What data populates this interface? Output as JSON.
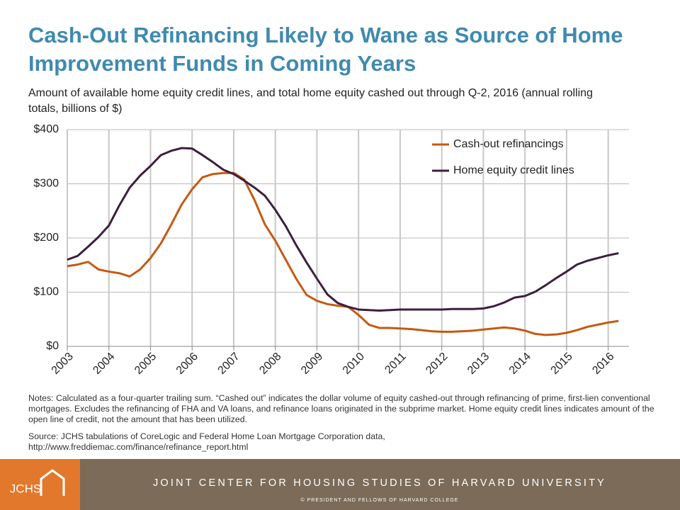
{
  "chart_data": {
    "type": "line",
    "title": "Cash-Out Refinancing Likely to Wane as Source of Home Improvement Funds in Coming Years",
    "subtitle": "Amount of available home equity credit lines, and total home equity cashed out through Q-2, 2016 (annual rolling totals, billions of $)",
    "notes": "Notes: Calculated as a four-quarter trailing sum. “Cashed out” indicates the dollar volume of equity cashed-out through refinancing of prime, first-lien conventional mortgages. Excludes the refinancing of FHA and VA loans, and refinance loans originated in the subprime market. Home equity credit lines indicates amount of the open line of credit, not the amount that has been utilized.",
    "source": "Source: JCHS tabulations of CoreLogic and Federal Home Loan Mortgage Corporation data, http://www.freddiemac.com/finance/refinance_report.html",
    "x": [
      2003,
      2003.25,
      2003.5,
      2003.75,
      2004,
      2004.25,
      2004.5,
      2004.75,
      2005,
      2005.25,
      2005.5,
      2005.75,
      2006,
      2006.25,
      2006.5,
      2006.75,
      2007,
      2007.25,
      2007.5,
      2007.75,
      2008,
      2008.25,
      2008.5,
      2008.75,
      2009,
      2009.25,
      2009.5,
      2009.75,
      2010,
      2010.25,
      2010.5,
      2010.75,
      2011,
      2011.25,
      2011.5,
      2011.75,
      2012,
      2012.25,
      2012.5,
      2012.75,
      2013,
      2013.25,
      2013.5,
      2013.75,
      2014,
      2014.25,
      2014.5,
      2014.75,
      2015,
      2015.25,
      2015.5,
      2015.75,
      2016,
      2016.25
    ],
    "series": [
      {
        "name": "Cash-out refinancings",
        "color": "#c55a11",
        "values": [
          148,
          151,
          156,
          142,
          138,
          135,
          129,
          142,
          163,
          190,
          225,
          262,
          290,
          312,
          318,
          320,
          320,
          308,
          270,
          225,
          195,
          160,
          125,
          95,
          84,
          78,
          75,
          73,
          58,
          40,
          34,
          34,
          33,
          32,
          30,
          28,
          27,
          27,
          28,
          29,
          31,
          33,
          35,
          33,
          29,
          23,
          21,
          22,
          25,
          30,
          36,
          40,
          44,
          47
        ]
      },
      {
        "name": "Home equity credit lines",
        "color": "#3c1f3d",
        "values": [
          160,
          167,
          184,
          202,
          223,
          260,
          293,
          315,
          333,
          353,
          361,
          366,
          365,
          353,
          340,
          326,
          318,
          306,
          293,
          278,
          252,
          222,
          187,
          155,
          125,
          96,
          80,
          73,
          68,
          67,
          66,
          67,
          68,
          68,
          68,
          68,
          68,
          69,
          69,
          69,
          70,
          74,
          81,
          90,
          93,
          101,
          113,
          126,
          138,
          151,
          158,
          163,
          168,
          172
        ]
      }
    ],
    "xlim": [
      2003,
      2016.5
    ],
    "xticks": [
      2003,
      2004,
      2005,
      2006,
      2007,
      2008,
      2009,
      2010,
      2011,
      2012,
      2013,
      2014,
      2015,
      2016
    ],
    "ylim": [
      0,
      400
    ],
    "yticks": [
      {
        "value": 0,
        "label": "$0"
      },
      {
        "value": 100,
        "label": "$100"
      },
      {
        "value": 200,
        "label": "$200"
      },
      {
        "value": 300,
        "label": "$300"
      },
      {
        "value": 400,
        "label": "$400"
      }
    ],
    "grid": true,
    "legend": "upper right"
  },
  "footer": {
    "logo": "JCHS",
    "organization": "JOINT CENTER FOR HOUSING STUDIES OF HARVARD UNIVERSITY",
    "copyright": "© PRESIDENT AND FELLOWS OF HARVARD COLLEGE"
  }
}
